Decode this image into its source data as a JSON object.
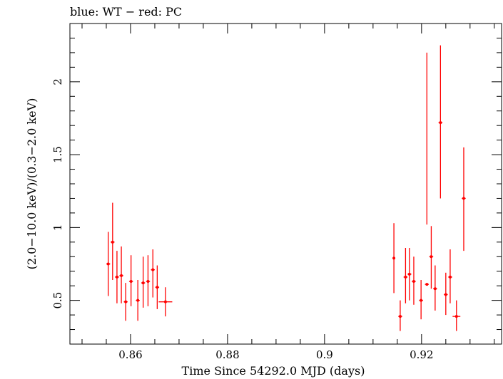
{
  "chart_data": {
    "type": "scatter",
    "title": "blue: WT − red: PC",
    "xlabel": "Time Since 54292.0 MJD (days)",
    "ylabel": "(2.0−10.0 keV)/(0.3−2.0 keV)",
    "xlim": [
      0.8475,
      0.9365
    ],
    "ylim": [
      0.2,
      2.4
    ],
    "xticks": [
      {
        "value": 0.86,
        "label": "0.86"
      },
      {
        "value": 0.88,
        "label": "0.88"
      },
      {
        "value": 0.9,
        "label": "0.9"
      },
      {
        "value": 0.92,
        "label": "0.92"
      }
    ],
    "yticks": [
      {
        "value": 0.5,
        "label": "0.5"
      },
      {
        "value": 1.0,
        "label": "1"
      },
      {
        "value": 1.5,
        "label": "1.5"
      },
      {
        "value": 2.0,
        "label": "2"
      }
    ],
    "grid": false,
    "series": [
      {
        "color": "#ff0000",
        "points": [
          {
            "x": 0.8554,
            "y": 0.75,
            "xerr": 0.0004,
            "ylo": 0.53,
            "yhi": 0.97
          },
          {
            "x": 0.8563,
            "y": 0.9,
            "xerr": 0.0004,
            "ylo": 0.64,
            "yhi": 1.17
          },
          {
            "x": 0.8572,
            "y": 0.66,
            "xerr": 0.0004,
            "ylo": 0.48,
            "yhi": 0.84
          },
          {
            "x": 0.8581,
            "y": 0.67,
            "xerr": 0.0004,
            "ylo": 0.48,
            "yhi": 0.87
          },
          {
            "x": 0.859,
            "y": 0.49,
            "xerr": 0.0004,
            "ylo": 0.36,
            "yhi": 0.62
          },
          {
            "x": 0.8601,
            "y": 0.63,
            "xerr": 0.0004,
            "ylo": 0.46,
            "yhi": 0.81
          },
          {
            "x": 0.8615,
            "y": 0.5,
            "xerr": 0.0004,
            "ylo": 0.36,
            "yhi": 0.64
          },
          {
            "x": 0.8626,
            "y": 0.62,
            "xerr": 0.0004,
            "ylo": 0.45,
            "yhi": 0.8
          },
          {
            "x": 0.8636,
            "y": 0.63,
            "xerr": 0.0004,
            "ylo": 0.46,
            "yhi": 0.81
          },
          {
            "x": 0.8646,
            "y": 0.71,
            "xerr": 0.0004,
            "ylo": 0.52,
            "yhi": 0.85
          },
          {
            "x": 0.8655,
            "y": 0.59,
            "xerr": 0.0004,
            "ylo": 0.44,
            "yhi": 0.74
          },
          {
            "x": 0.8672,
            "y": 0.49,
            "xerr": 0.0014,
            "ylo": 0.39,
            "yhi": 0.59
          },
          {
            "x": 0.9143,
            "y": 0.79,
            "xerr": 0.0002,
            "ylo": 0.55,
            "yhi": 1.03
          },
          {
            "x": 0.9156,
            "y": 0.39,
            "xerr": 0.0004,
            "ylo": 0.29,
            "yhi": 0.5
          },
          {
            "x": 0.9167,
            "y": 0.66,
            "xerr": 0.0004,
            "ylo": 0.48,
            "yhi": 0.86
          },
          {
            "x": 0.9175,
            "y": 0.68,
            "xerr": 0.0004,
            "ylo": 0.5,
            "yhi": 0.86
          },
          {
            "x": 0.9184,
            "y": 0.63,
            "xerr": 0.0004,
            "ylo": 0.47,
            "yhi": 0.8
          },
          {
            "x": 0.9199,
            "y": 0.5,
            "xerr": 0.0004,
            "ylo": 0.37,
            "yhi": 0.64
          },
          {
            "x": 0.9211,
            "y": 0.61,
            "xerr": 0.0004,
            "ylo": 1.02,
            "yhi": 2.2
          },
          {
            "x": 0.922,
            "y": 0.8,
            "xerr": 0.0004,
            "ylo": 0.58,
            "yhi": 1.01
          },
          {
            "x": 0.9228,
            "y": 0.58,
            "xerr": 0.0004,
            "ylo": 0.43,
            "yhi": 0.74
          },
          {
            "x": 0.9239,
            "y": 1.72,
            "xerr": 0.0004,
            "ylo": 1.2,
            "yhi": 2.25
          },
          {
            "x": 0.925,
            "y": 0.54,
            "xerr": 0.0004,
            "ylo": 0.4,
            "yhi": 0.69
          },
          {
            "x": 0.9259,
            "y": 0.66,
            "xerr": 0.0004,
            "ylo": 0.48,
            "yhi": 0.85
          },
          {
            "x": 0.9272,
            "y": 0.39,
            "xerr": 0.0008,
            "ylo": 0.29,
            "yhi": 0.5
          },
          {
            "x": 0.9287,
            "y": 1.2,
            "xerr": 0.0004,
            "ylo": 0.84,
            "yhi": 1.55
          }
        ]
      }
    ]
  }
}
